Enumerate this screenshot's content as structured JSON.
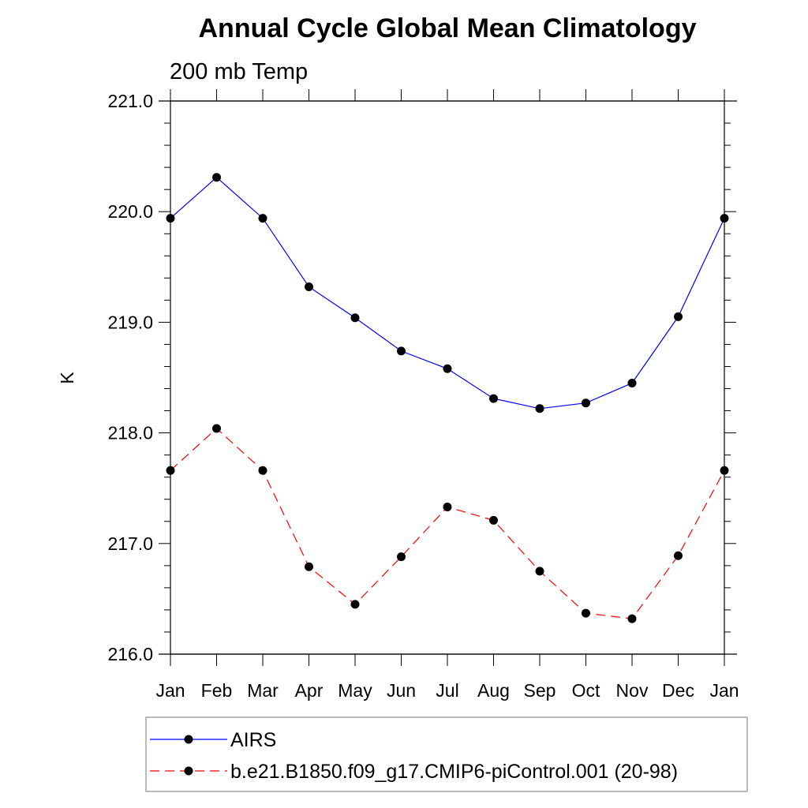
{
  "chart_data": {
    "type": "line",
    "title": "Annual Cycle Global Mean Climatology",
    "subtitle": "200 mb Temp",
    "xlabel": "",
    "ylabel": "K",
    "categories": [
      "Jan",
      "Feb",
      "Mar",
      "Apr",
      "May",
      "Jun",
      "Jul",
      "Aug",
      "Sep",
      "Oct",
      "Nov",
      "Dec",
      "Jan"
    ],
    "ylim": [
      216.0,
      221.0
    ],
    "yticks": [
      216.0,
      217.0,
      218.0,
      219.0,
      220.0,
      221.0
    ],
    "ytick_labels": [
      "216.0",
      "217.0",
      "218.0",
      "219.0",
      "220.0",
      "221.0"
    ],
    "grid": false,
    "legend_position": "bottom",
    "series": [
      {
        "name": "AIRS",
        "color": "#0000ff",
        "line_style": "solid",
        "marker": "filled-circle",
        "values": [
          219.94,
          220.31,
          219.94,
          219.32,
          219.04,
          218.74,
          218.58,
          218.31,
          218.22,
          218.27,
          218.45,
          219.05,
          219.94
        ]
      },
      {
        "name": "b.e21.B1850.f09_g17.CMIP6-piControl.001 (20-98)",
        "color": "#ff0000",
        "line_style": "dashed",
        "marker": "filled-circle",
        "values": [
          217.66,
          218.04,
          217.66,
          216.79,
          216.45,
          216.88,
          217.33,
          217.21,
          216.75,
          216.37,
          216.32,
          216.89,
          217.66
        ]
      }
    ]
  }
}
